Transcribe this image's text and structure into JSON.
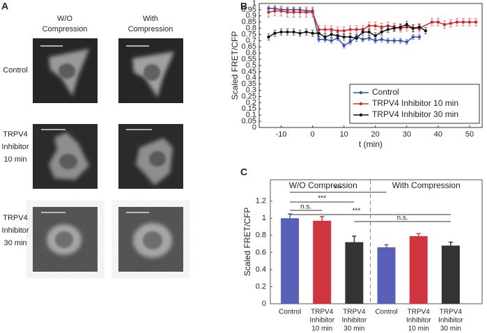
{
  "panel_labels": [
    "A",
    "B",
    "C"
  ],
  "panel_a": {
    "column_headers": [
      [
        "W/O",
        "Compression"
      ],
      [
        "With",
        "Compression"
      ]
    ],
    "row_labels": [
      [
        "Control"
      ],
      [
        "TRPV4",
        "Inhibitor",
        "10 min"
      ],
      [
        "TRPV4",
        "Inhibitor",
        "30 min"
      ]
    ]
  },
  "chart_data": [
    {
      "type": "line",
      "xlabel": "t (min)",
      "ylabel": "Scaled FRET/CFP",
      "xlim": [
        -17,
        54
      ],
      "xticks": [
        -10,
        0,
        10,
        20,
        30,
        40,
        50
      ],
      "ylim": [
        0,
        1
      ],
      "yticks": [
        0,
        0.05,
        0.1,
        0.15,
        0.2,
        0.25,
        0.3,
        0.35,
        0.4,
        0.45,
        0.5,
        0.55,
        0.6,
        0.65,
        0.7,
        0.75,
        0.8,
        0.85,
        0.9,
        0.95,
        1
      ],
      "legend": "lower right",
      "series": [
        {
          "name": "Control",
          "color": "#3350b0",
          "x": [
            -14,
            -12,
            -10,
            -8,
            -6,
            -4,
            -2,
            0,
            2,
            4,
            6,
            8,
            10,
            12,
            14,
            16,
            18,
            20,
            22,
            24,
            26,
            28,
            30,
            32,
            34
          ],
          "values": [
            0.96,
            0.96,
            0.95,
            0.95,
            0.95,
            0.95,
            0.94,
            0.94,
            0.71,
            0.71,
            0.7,
            0.72,
            0.66,
            0.69,
            0.73,
            0.71,
            0.72,
            0.7,
            0.71,
            0.7,
            0.7,
            0.7,
            0.69,
            0.73,
            0.73
          ],
          "errors": [
            0.02,
            0.02,
            0.02,
            0.02,
            0.02,
            0.02,
            0.02,
            0.02,
            0.02,
            0.02,
            0.02,
            0.02,
            0.02,
            0.02,
            0.02,
            0.02,
            0.02,
            0.02,
            0.02,
            0.02,
            0.02,
            0.02,
            0.02,
            0.02,
            0.02
          ]
        },
        {
          "name": "TRPV4 Inhibitor 10 min",
          "color": "#d8262b",
          "x": [
            -14,
            -12,
            -10,
            -8,
            -6,
            -4,
            -2,
            0,
            2,
            4,
            6,
            8,
            10,
            12,
            14,
            16,
            18,
            20,
            22,
            24,
            26,
            28,
            30,
            32,
            34,
            38,
            40,
            42,
            44,
            46,
            48,
            50,
            52
          ],
          "values": [
            0.93,
            0.94,
            0.94,
            0.93,
            0.93,
            0.93,
            0.93,
            0.93,
            0.79,
            0.79,
            0.79,
            0.78,
            0.78,
            0.79,
            0.79,
            0.79,
            0.82,
            0.82,
            0.81,
            0.82,
            0.81,
            0.8,
            0.81,
            0.8,
            0.8,
            0.85,
            0.85,
            0.83,
            0.84,
            0.85,
            0.85,
            0.85,
            0.85
          ],
          "errors": [
            0.04,
            0.04,
            0.04,
            0.04,
            0.04,
            0.04,
            0.04,
            0.04,
            0.03,
            0.03,
            0.03,
            0.03,
            0.03,
            0.03,
            0.03,
            0.03,
            0.03,
            0.03,
            0.03,
            0.03,
            0.03,
            0.03,
            0.03,
            0.03,
            0.03,
            0.03,
            0.03,
            0.03,
            0.03,
            0.03,
            0.03,
            0.03,
            0.03
          ]
        },
        {
          "name": "TRPV4 Inhibitor 30 min",
          "color": "#111111",
          "x": [
            -14,
            -12,
            -10,
            -8,
            -6,
            -4,
            -2,
            0,
            2,
            4,
            6,
            8,
            10,
            12,
            14,
            16,
            18,
            20,
            22,
            24,
            26,
            28,
            30,
            32,
            34,
            36
          ],
          "values": [
            0.73,
            0.76,
            0.77,
            0.77,
            0.77,
            0.76,
            0.77,
            0.76,
            0.76,
            0.73,
            0.75,
            0.74,
            0.73,
            0.73,
            0.72,
            0.77,
            0.77,
            0.74,
            0.77,
            0.79,
            0.8,
            0.81,
            0.83,
            0.8,
            0.81,
            0.78
          ],
          "errors": [
            0.025,
            0.025,
            0.025,
            0.025,
            0.025,
            0.025,
            0.025,
            0.025,
            0.025,
            0.025,
            0.025,
            0.025,
            0.025,
            0.025,
            0.025,
            0.025,
            0.025,
            0.025,
            0.025,
            0.025,
            0.025,
            0.025,
            0.025,
            0.025,
            0.025,
            0.025
          ]
        }
      ]
    },
    {
      "type": "bar",
      "ylabel": "Scaled FRET/CFP",
      "groups": [
        "W/O Compression",
        "With Compression"
      ],
      "categories": [
        [
          "Control"
        ],
        [
          "TRPV4",
          "Inhibitor",
          "10 min"
        ],
        [
          "TRPV4",
          "Inhibitor",
          "30 min"
        ],
        [
          "Control"
        ],
        [
          "TRPV4",
          "Inhibitor",
          "10 min"
        ],
        [
          "TRPV4",
          "Inhibitor",
          "30 min"
        ]
      ],
      "values": [
        1.0,
        0.97,
        0.72,
        0.66,
        0.79,
        0.68
      ],
      "errors": [
        0.05,
        0.05,
        0.07,
        0.03,
        0.03,
        0.04
      ],
      "colors": [
        "#5a5fb8",
        "#d0353f",
        "#333333",
        "#5a5fb8",
        "#d0353f",
        "#333333"
      ],
      "ylim": [
        0,
        1.45
      ],
      "yticks": [
        0,
        0.2,
        0.4,
        0.6,
        0.8,
        1,
        1.2
      ],
      "annotations": [
        "***",
        "***",
        "n.s.",
        "***",
        "n.s."
      ]
    }
  ]
}
